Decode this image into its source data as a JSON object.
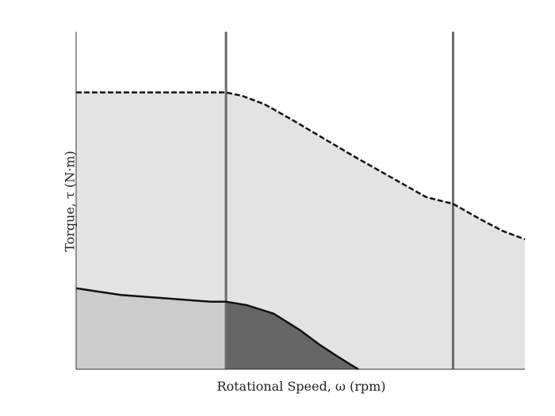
{
  "chart_data": {
    "type": "area",
    "xlabel": "Rotational Speed, ω (rpm)",
    "ylabel": "Torque, τ (N·m)",
    "xlim": [
      0,
      100
    ],
    "ylim": [
      0,
      100
    ],
    "ticks": "none",
    "grid": false,
    "legend": "none",
    "vertical_lines_x": [
      33.4,
      84
    ],
    "series": [
      {
        "style": "dashed",
        "fill": "#e3e3e3",
        "x": [
          0,
          10,
          20,
          33.4,
          37,
          42,
          48,
          55,
          62,
          70,
          78,
          84,
          90,
          95,
          100
        ],
        "y": [
          82,
          82,
          82,
          82,
          81,
          78.5,
          74,
          68.5,
          63,
          57,
          51,
          49,
          44.5,
          41,
          38.5
        ]
      },
      {
        "style": "solid",
        "fill_regions": [
          {
            "x_from": 0,
            "x_to": 33.4,
            "fill": "#cccccc"
          },
          {
            "x_from": 33.4,
            "x_to": 62.9,
            "fill": "#666666"
          }
        ],
        "x": [
          0,
          10,
          20,
          30,
          33.4,
          38,
          44,
          50,
          54,
          58,
          61,
          62.9
        ],
        "y": [
          24,
          22,
          21,
          20,
          20,
          19,
          16.5,
          11.5,
          7.5,
          4,
          1.5,
          0
        ]
      }
    ]
  }
}
